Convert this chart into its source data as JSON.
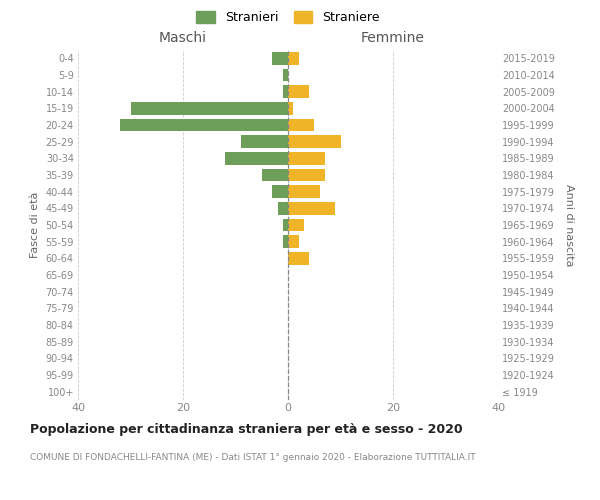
{
  "age_groups": [
    "100+",
    "95-99",
    "90-94",
    "85-89",
    "80-84",
    "75-79",
    "70-74",
    "65-69",
    "60-64",
    "55-59",
    "50-54",
    "45-49",
    "40-44",
    "35-39",
    "30-34",
    "25-29",
    "20-24",
    "15-19",
    "10-14",
    "5-9",
    "0-4"
  ],
  "birth_years": [
    "≤ 1919",
    "1920-1924",
    "1925-1929",
    "1930-1934",
    "1935-1939",
    "1940-1944",
    "1945-1949",
    "1950-1954",
    "1955-1959",
    "1960-1964",
    "1965-1969",
    "1970-1974",
    "1975-1979",
    "1980-1984",
    "1985-1989",
    "1990-1994",
    "1995-1999",
    "2000-2004",
    "2005-2009",
    "2010-2014",
    "2015-2019"
  ],
  "males": [
    0,
    0,
    0,
    0,
    0,
    0,
    0,
    0,
    0,
    1,
    1,
    2,
    3,
    5,
    12,
    9,
    32,
    30,
    1,
    1,
    3
  ],
  "females": [
    0,
    0,
    0,
    0,
    0,
    0,
    0,
    0,
    4,
    2,
    3,
    9,
    6,
    7,
    7,
    10,
    5,
    1,
    4,
    0,
    2
  ],
  "male_color": "#6d9e5a",
  "female_color": "#f0b429",
  "center_line_color": "#888888",
  "grid_color": "#cccccc",
  "title": "Popolazione per cittadinanza straniera per età e sesso - 2020",
  "subtitle": "COMUNE DI FONDACHELLI-FANTINA (ME) - Dati ISTAT 1° gennaio 2020 - Elaborazione TUTTITALIA.IT",
  "left_label": "Maschi",
  "right_label": "Femmine",
  "yaxis_label": "Fasce di età",
  "right_yaxis_label": "Anni di nascita",
  "legend_male": "Stranieri",
  "legend_female": "Straniere",
  "xlim": 40,
  "background_color": "#ffffff",
  "plot_bg_color": "#ffffff"
}
